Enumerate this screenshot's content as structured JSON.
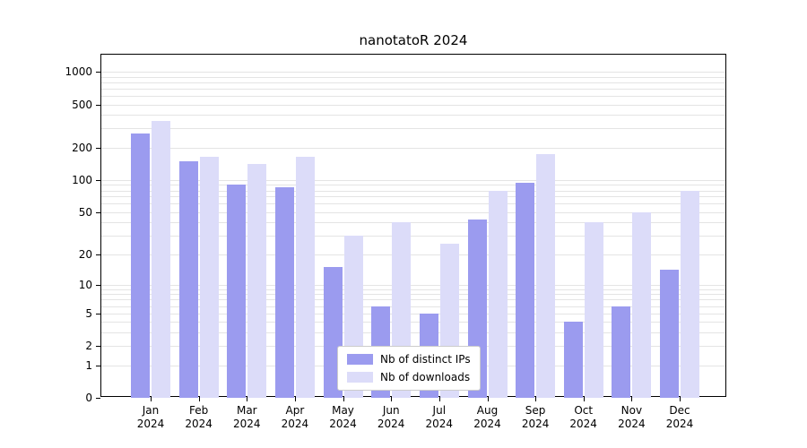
{
  "title": "nanotatoR 2024",
  "chart_data": {
    "type": "bar",
    "title": "nanotatoR 2024",
    "yscale": "log1p",
    "ylim": [
      0,
      1100
    ],
    "grid": true,
    "legend_position": "bottom-center-inside",
    "yticks": [
      1000,
      500,
      200,
      100,
      50,
      20,
      10,
      5,
      2,
      1,
      0
    ],
    "minor_gridlines": [
      1,
      2,
      3,
      4,
      5,
      6,
      7,
      8,
      9,
      10,
      20,
      30,
      40,
      50,
      60,
      70,
      80,
      90,
      100,
      200,
      300,
      400,
      500,
      600,
      700,
      800,
      900,
      1000
    ],
    "categories": [
      {
        "month": "Jan",
        "year": "2024"
      },
      {
        "month": "Feb",
        "year": "2024"
      },
      {
        "month": "Mar",
        "year": "2024"
      },
      {
        "month": "Apr",
        "year": "2024"
      },
      {
        "month": "May",
        "year": "2024"
      },
      {
        "month": "Jun",
        "year": "2024"
      },
      {
        "month": "Jul",
        "year": "2024"
      },
      {
        "month": "Aug",
        "year": "2024"
      },
      {
        "month": "Sep",
        "year": "2024"
      },
      {
        "month": "Oct",
        "year": "2024"
      },
      {
        "month": "Nov",
        "year": "2024"
      },
      {
        "month": "Dec",
        "year": "2024"
      }
    ],
    "series": [
      {
        "name": "Nb of distinct IPs",
        "color": "#9b9bef",
        "values": [
          270,
          150,
          90,
          85,
          15,
          6,
          5,
          43,
          95,
          4,
          6,
          14
        ]
      },
      {
        "name": "Nb of downloads",
        "color": "#dcdcf9",
        "values": [
          350,
          165,
          140,
          165,
          30,
          40,
          25,
          80,
          175,
          40,
          50,
          80
        ]
      }
    ]
  },
  "colors": {
    "axis": "#000000",
    "gridline": "#e4e4e4",
    "background": "#ffffff",
    "legend_border": "#cccccc"
  }
}
